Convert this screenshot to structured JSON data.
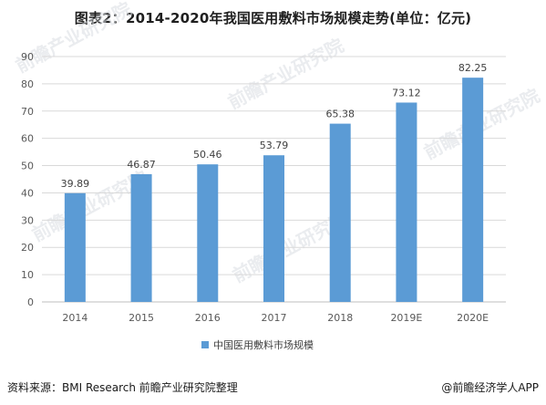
{
  "title": "图表2：2014-2020年我国医用敷料市场规模走势(单位：亿元)",
  "source": "资料来源：BMI Research 前瞻产业研究院整理",
  "brand": "@前瞻经济学人APP",
  "watermark": "前瞻产业研究院",
  "colors": {
    "bar": "#5b9bd5",
    "grid": "#d9d9d9",
    "axis": "#bfbfbf"
  },
  "chart_data": {
    "type": "bar",
    "categories": [
      "2014",
      "2015",
      "2016",
      "2017",
      "2018",
      "2019E",
      "2020E"
    ],
    "series": [
      {
        "name": "中国医用敷料市场规模",
        "values": [
          39.89,
          46.87,
          50.46,
          53.79,
          65.38,
          73.12,
          82.25
        ]
      }
    ],
    "data_labels": [
      "39.89",
      "46.87",
      "50.46",
      "53.79",
      "65.38",
      "73.12",
      "82.25"
    ],
    "yticks": [
      0,
      10,
      20,
      30,
      40,
      50,
      60,
      70,
      80,
      90
    ],
    "ylim": [
      0,
      90
    ],
    "grid": true,
    "legend_position": "bottom-center"
  }
}
